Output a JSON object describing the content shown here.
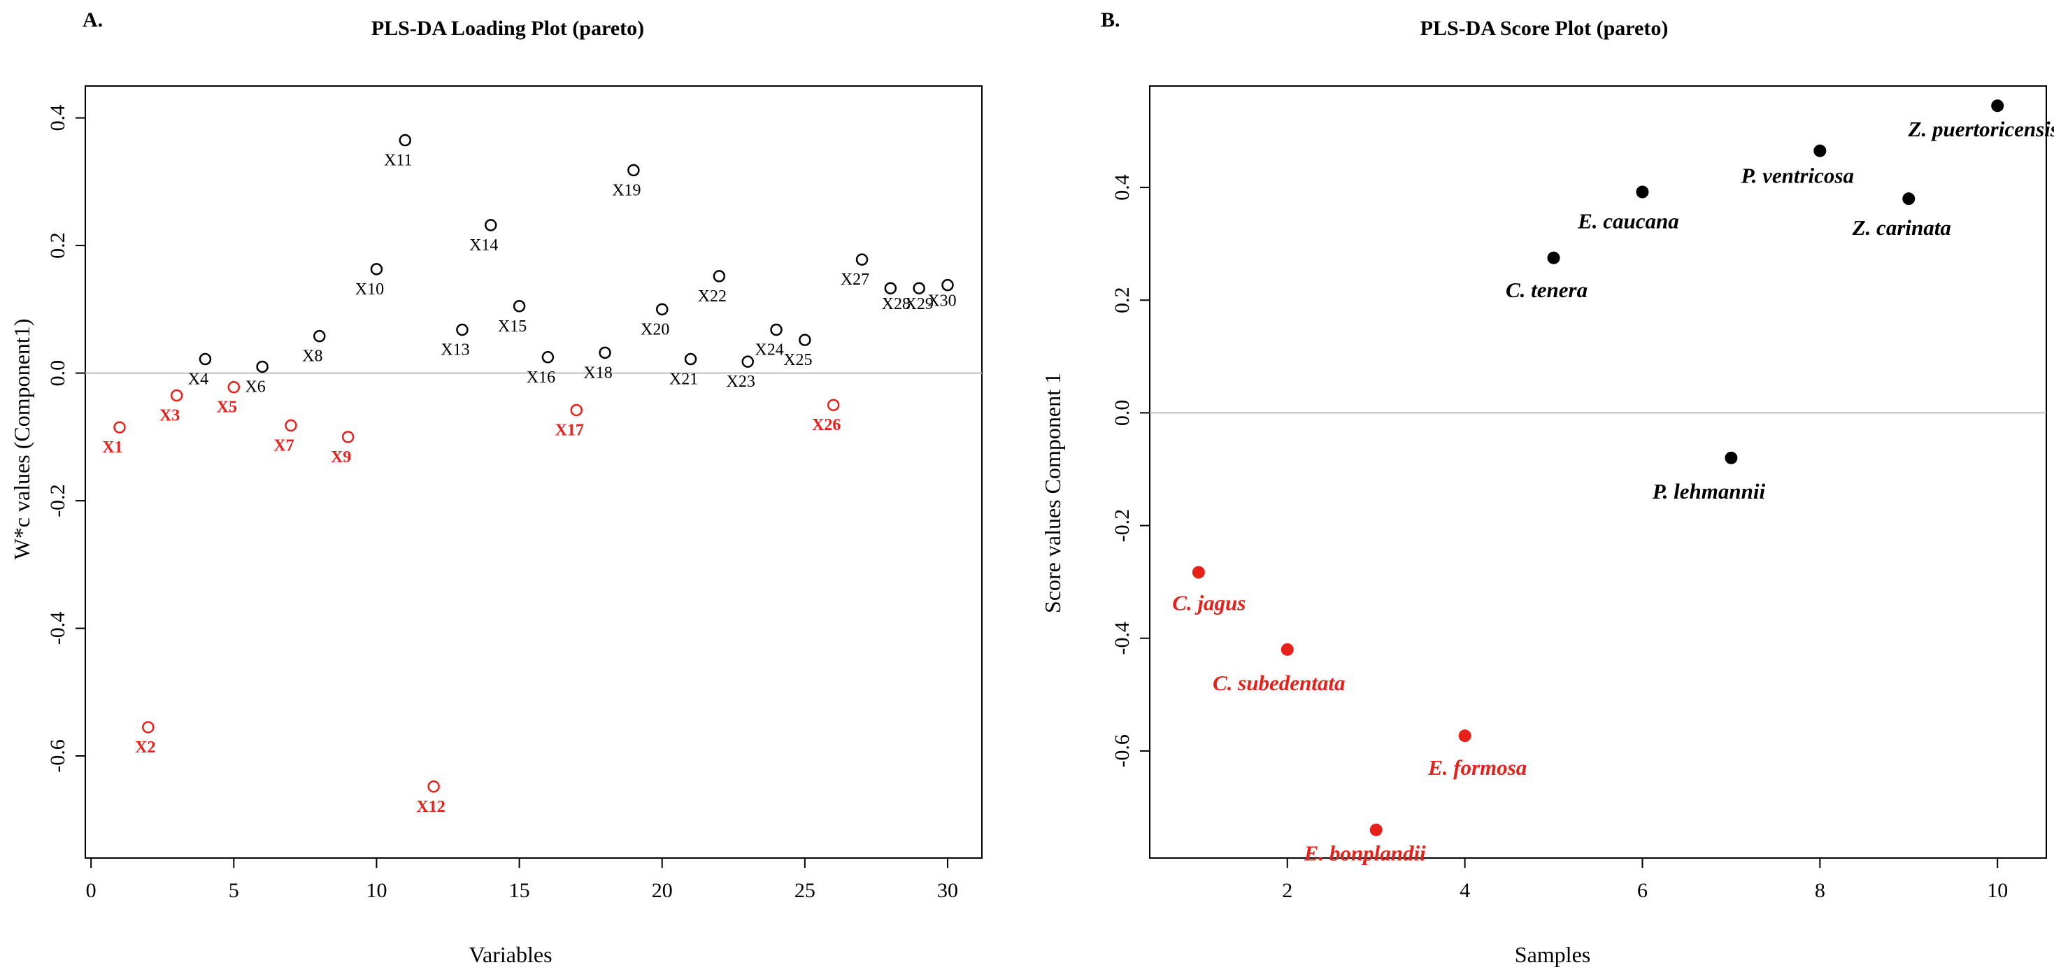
{
  "colors": {
    "black": "#000000",
    "red": "#e8201a",
    "zero_line": "#bdbdbd"
  },
  "chart_data": [
    {
      "type": "scatter",
      "panel": "A.",
      "title": "PLS-DA Loading Plot (pareto)",
      "xlabel": "Variables",
      "ylabel": "W*c values (Component1)",
      "xlim": [
        -0.2,
        31.2
      ],
      "ylim": [
        -0.76,
        0.45
      ],
      "xticks": [
        0,
        5,
        10,
        15,
        20,
        25,
        30
      ],
      "yticks": [
        -0.6,
        -0.4,
        -0.2,
        0.0,
        0.2,
        0.4
      ],
      "ytick_labels": [
        "-0.6",
        "-0.4",
        "-0.2",
        "0.0",
        "0.2",
        "0.4"
      ],
      "marker": "open-circle",
      "points": [
        {
          "x": 1,
          "y": -0.085,
          "label": "X1",
          "group": "red"
        },
        {
          "x": 2,
          "y": -0.555,
          "label": "X2",
          "group": "red"
        },
        {
          "x": 3,
          "y": -0.035,
          "label": "X3",
          "group": "red"
        },
        {
          "x": 4,
          "y": 0.022,
          "label": "X4",
          "group": "black"
        },
        {
          "x": 5,
          "y": -0.022,
          "label": "X5",
          "group": "red"
        },
        {
          "x": 6,
          "y": 0.01,
          "label": "X6",
          "group": "black"
        },
        {
          "x": 7,
          "y": -0.082,
          "label": "X7",
          "group": "red"
        },
        {
          "x": 8,
          "y": 0.058,
          "label": "X8",
          "group": "black"
        },
        {
          "x": 9,
          "y": -0.1,
          "label": "X9",
          "group": "red"
        },
        {
          "x": 10,
          "y": 0.163,
          "label": "X10",
          "group": "black"
        },
        {
          "x": 11,
          "y": 0.365,
          "label": "X11",
          "group": "black"
        },
        {
          "x": 12,
          "y": -0.648,
          "label": "X12",
          "group": "red"
        },
        {
          "x": 13,
          "y": 0.068,
          "label": "X13",
          "group": "black"
        },
        {
          "x": 14,
          "y": 0.232,
          "label": "X14",
          "group": "black"
        },
        {
          "x": 15,
          "y": 0.105,
          "label": "X15",
          "group": "black"
        },
        {
          "x": 16,
          "y": 0.025,
          "label": "X16",
          "group": "black"
        },
        {
          "x": 17,
          "y": -0.058,
          "label": "X17",
          "group": "red"
        },
        {
          "x": 18,
          "y": 0.032,
          "label": "X18",
          "group": "black"
        },
        {
          "x": 19,
          "y": 0.318,
          "label": "X19",
          "group": "black"
        },
        {
          "x": 20,
          "y": 0.1,
          "label": "X20",
          "group": "black"
        },
        {
          "x": 21,
          "y": 0.022,
          "label": "X21",
          "group": "black"
        },
        {
          "x": 22,
          "y": 0.152,
          "label": "X22",
          "group": "black"
        },
        {
          "x": 23,
          "y": 0.018,
          "label": "X23",
          "group": "black"
        },
        {
          "x": 24,
          "y": 0.068,
          "label": "X24",
          "group": "black"
        },
        {
          "x": 25,
          "y": 0.052,
          "label": "X25",
          "group": "black"
        },
        {
          "x": 26,
          "y": -0.05,
          "label": "X26",
          "group": "red"
        },
        {
          "x": 27,
          "y": 0.178,
          "label": "X27",
          "group": "black"
        },
        {
          "x": 28,
          "y": 0.133,
          "label": "X28",
          "group": "black"
        },
        {
          "x": 29,
          "y": 0.133,
          "label": "X29",
          "group": "black"
        },
        {
          "x": 30,
          "y": 0.138,
          "label": "X30",
          "group": "black"
        }
      ]
    },
    {
      "type": "scatter",
      "panel": "B.",
      "title": "PLS-DA Score Plot (pareto)",
      "xlabel": "Samples",
      "ylabel": "Score values Component 1",
      "xlim": [
        0.45,
        10.55
      ],
      "ylim": [
        -0.79,
        0.58
      ],
      "xticks": [
        2,
        4,
        6,
        8,
        10
      ],
      "yticks": [
        -0.6,
        -0.4,
        -0.2,
        0.0,
        0.2,
        0.4
      ],
      "ytick_labels": [
        "-0.6",
        "-0.4",
        "-0.2",
        "0.0",
        "0.2",
        "0.4"
      ],
      "marker": "filled-circle",
      "points": [
        {
          "x": 1,
          "y": -0.283,
          "label": "C. jagus",
          "group": "red"
        },
        {
          "x": 2,
          "y": -0.42,
          "label": "C. subedentata",
          "group": "red"
        },
        {
          "x": 3,
          "y": -0.74,
          "label": "E. bonplandii",
          "group": "red"
        },
        {
          "x": 4,
          "y": -0.573,
          "label": "E. formosa",
          "group": "red"
        },
        {
          "x": 5,
          "y": 0.275,
          "label": "C. tenera",
          "group": "black"
        },
        {
          "x": 6,
          "y": 0.392,
          "label": "E. caucana",
          "group": "black"
        },
        {
          "x": 7,
          "y": -0.08,
          "label": "P. lehmannii",
          "group": "black"
        },
        {
          "x": 8,
          "y": 0.465,
          "label": "P. ventricosa",
          "group": "black"
        },
        {
          "x": 9,
          "y": 0.38,
          "label": "Z. carinata",
          "group": "black"
        },
        {
          "x": 10,
          "y": 0.545,
          "label": "Z. puertoricensis",
          "group": "black"
        }
      ]
    }
  ]
}
